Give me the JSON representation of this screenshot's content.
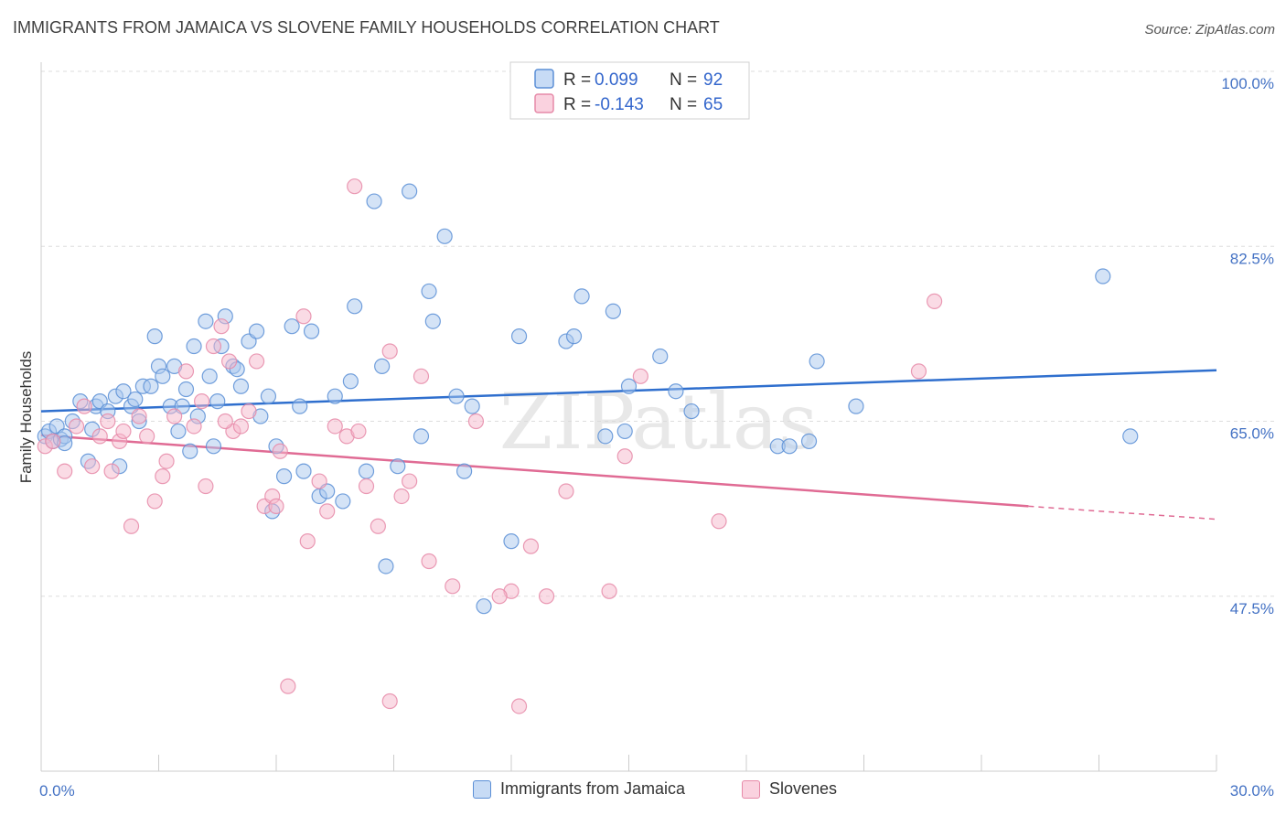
{
  "header": {
    "title": "IMMIGRANTS FROM JAMAICA VS SLOVENE FAMILY HOUSEHOLDS CORRELATION CHART",
    "source": "Source: ZipAtlas.com"
  },
  "colors": {
    "blue_fill": "#a9c7ee",
    "blue_stroke": "#5b8fd6",
    "blue_line": "#2f6fce",
    "pink_fill": "#f5b8cc",
    "pink_stroke": "#e68aa8",
    "pink_line": "#e06b94",
    "tick_text": "#4472c4",
    "grid": "#dddddd"
  },
  "chart_data": {
    "type": "scatter",
    "title": "IMMIGRANTS FROM JAMAICA VS SLOVENE FAMILY HOUSEHOLDS CORRELATION CHART",
    "xlabel": "",
    "ylabel": "Family Households",
    "xlim": [
      0,
      30
    ],
    "ylim": [
      30,
      100
    ],
    "x_tick_labels": [
      "0.0%",
      "30.0%"
    ],
    "y_ticks": [
      47.5,
      65.0,
      82.5,
      100.0
    ],
    "y_tick_labels": [
      "47.5%",
      "65.0%",
      "82.5%",
      "100.0%"
    ],
    "grid": true,
    "watermark": "ZIPatlas",
    "legend": {
      "rows": [
        {
          "r_label": "R =",
          "r_value": "0.099",
          "n_label": "N =",
          "n_value": "92"
        },
        {
          "r_label": "R =",
          "r_value": "-0.143",
          "n_label": "N =",
          "n_value": "65"
        }
      ]
    },
    "series": [
      {
        "name": "Immigrants from Jamaica",
        "r": 0.099,
        "n": 92,
        "trend": {
          "x": [
            0,
            30
          ],
          "y": [
            66.0,
            70.1
          ]
        },
        "points": [
          [
            0.1,
            63.5
          ],
          [
            0.2,
            64.0
          ],
          [
            0.3,
            63.0
          ],
          [
            0.4,
            64.5
          ],
          [
            0.5,
            63.2
          ],
          [
            0.6,
            63.5
          ],
          [
            0.8,
            65.0
          ],
          [
            1.0,
            67.0
          ],
          [
            1.2,
            61.0
          ],
          [
            1.4,
            66.5
          ],
          [
            1.5,
            67.0
          ],
          [
            1.7,
            66.0
          ],
          [
            1.9,
            67.5
          ],
          [
            2.0,
            60.5
          ],
          [
            2.1,
            68.0
          ],
          [
            2.3,
            66.5
          ],
          [
            2.5,
            65.0
          ],
          [
            2.6,
            68.5
          ],
          [
            2.8,
            68.5
          ],
          [
            2.9,
            73.5
          ],
          [
            3.0,
            70.5
          ],
          [
            3.1,
            69.5
          ],
          [
            3.3,
            66.5
          ],
          [
            3.4,
            70.5
          ],
          [
            3.5,
            64.0
          ],
          [
            3.6,
            66.5
          ],
          [
            3.8,
            62.0
          ],
          [
            3.9,
            72.5
          ],
          [
            4.0,
            65.5
          ],
          [
            4.2,
            75.0
          ],
          [
            4.3,
            69.5
          ],
          [
            4.4,
            62.5
          ],
          [
            4.5,
            67.0
          ],
          [
            4.6,
            72.5
          ],
          [
            4.7,
            75.5
          ],
          [
            4.9,
            70.5
          ],
          [
            5.1,
            68.5
          ],
          [
            5.3,
            73.0
          ],
          [
            5.5,
            74.0
          ],
          [
            5.6,
            65.5
          ],
          [
            5.8,
            67.5
          ],
          [
            5.9,
            56.0
          ],
          [
            6.0,
            62.5
          ],
          [
            6.2,
            59.5
          ],
          [
            6.4,
            74.5
          ],
          [
            6.6,
            66.5
          ],
          [
            6.7,
            60.0
          ],
          [
            6.9,
            74.0
          ],
          [
            7.1,
            57.5
          ],
          [
            7.3,
            58.0
          ],
          [
            7.5,
            67.5
          ],
          [
            7.7,
            57.0
          ],
          [
            7.9,
            69.0
          ],
          [
            8.0,
            76.5
          ],
          [
            8.3,
            60.0
          ],
          [
            8.5,
            87.0
          ],
          [
            8.7,
            70.5
          ],
          [
            8.8,
            50.5
          ],
          [
            9.1,
            60.5
          ],
          [
            9.4,
            88.0
          ],
          [
            9.7,
            63.5
          ],
          [
            9.9,
            78.0
          ],
          [
            10.0,
            75.0
          ],
          [
            10.3,
            83.5
          ],
          [
            10.6,
            67.5
          ],
          [
            10.8,
            60.0
          ],
          [
            11.0,
            66.5
          ],
          [
            11.3,
            46.5
          ],
          [
            12.0,
            53.0
          ],
          [
            12.2,
            73.5
          ],
          [
            13.4,
            73.0
          ],
          [
            13.6,
            73.5
          ],
          [
            13.8,
            77.5
          ],
          [
            14.4,
            63.5
          ],
          [
            14.6,
            76.0
          ],
          [
            14.9,
            64.0
          ],
          [
            15.0,
            68.5
          ],
          [
            15.8,
            71.5
          ],
          [
            16.2,
            68.0
          ],
          [
            16.6,
            66.0
          ],
          [
            18.8,
            62.5
          ],
          [
            19.1,
            62.5
          ],
          [
            19.6,
            63.0
          ],
          [
            19.8,
            71.0
          ],
          [
            20.8,
            66.5
          ],
          [
            27.1,
            79.5
          ],
          [
            27.8,
            63.5
          ],
          [
            0.6,
            62.8
          ],
          [
            1.3,
            64.2
          ],
          [
            2.4,
            67.2
          ],
          [
            3.7,
            68.2
          ],
          [
            5.0,
            70.2
          ]
        ]
      },
      {
        "name": "Slovenes",
        "r": -0.143,
        "n": 65,
        "trend": {
          "x": [
            0,
            25.2
          ],
          "y": [
            63.6,
            56.5
          ]
        },
        "trend_dashed": {
          "x": [
            25.2,
            30
          ],
          "y": [
            56.5,
            55.2
          ]
        },
        "points": [
          [
            0.1,
            62.5
          ],
          [
            0.3,
            63.0
          ],
          [
            0.6,
            60.0
          ],
          [
            0.9,
            64.5
          ],
          [
            1.1,
            66.5
          ],
          [
            1.3,
            60.5
          ],
          [
            1.5,
            63.5
          ],
          [
            1.7,
            65.0
          ],
          [
            1.8,
            60.0
          ],
          [
            2.0,
            63.0
          ],
          [
            2.1,
            64.0
          ],
          [
            2.3,
            54.5
          ],
          [
            2.5,
            65.5
          ],
          [
            2.7,
            63.5
          ],
          [
            2.9,
            57.0
          ],
          [
            3.1,
            59.5
          ],
          [
            3.2,
            61.0
          ],
          [
            3.4,
            65.5
          ],
          [
            3.7,
            70.0
          ],
          [
            3.9,
            64.5
          ],
          [
            4.1,
            67.0
          ],
          [
            4.2,
            58.5
          ],
          [
            4.4,
            72.5
          ],
          [
            4.6,
            74.5
          ],
          [
            4.8,
            71.0
          ],
          [
            4.9,
            64.0
          ],
          [
            5.1,
            64.5
          ],
          [
            5.3,
            66.0
          ],
          [
            5.5,
            71.0
          ],
          [
            5.7,
            56.5
          ],
          [
            5.9,
            57.5
          ],
          [
            6.1,
            62.0
          ],
          [
            6.3,
            38.5
          ],
          [
            6.7,
            75.5
          ],
          [
            6.8,
            53.0
          ],
          [
            7.1,
            59.0
          ],
          [
            7.3,
            56.0
          ],
          [
            7.5,
            64.5
          ],
          [
            7.8,
            63.5
          ],
          [
            8.0,
            88.5
          ],
          [
            8.1,
            64.0
          ],
          [
            8.3,
            58.5
          ],
          [
            8.6,
            54.5
          ],
          [
            8.9,
            72.0
          ],
          [
            8.9,
            37.0
          ],
          [
            9.2,
            57.5
          ],
          [
            9.7,
            69.5
          ],
          [
            9.9,
            51.0
          ],
          [
            10.5,
            48.5
          ],
          [
            11.1,
            65.0
          ],
          [
            12.0,
            48.0
          ],
          [
            12.2,
            36.5
          ],
          [
            12.5,
            52.5
          ],
          [
            12.9,
            47.5
          ],
          [
            13.4,
            58.0
          ],
          [
            14.5,
            48.0
          ],
          [
            14.9,
            61.5
          ],
          [
            15.3,
            69.5
          ],
          [
            17.3,
            55.0
          ],
          [
            22.4,
            70.0
          ],
          [
            22.8,
            77.0
          ],
          [
            11.7,
            47.5
          ],
          [
            4.7,
            65.0
          ],
          [
            6.0,
            56.5
          ],
          [
            9.4,
            59.0
          ]
        ]
      }
    ]
  },
  "bottom_legend": {
    "items": [
      {
        "label": "Immigrants from Jamaica"
      },
      {
        "label": "Slovenes"
      }
    ]
  }
}
